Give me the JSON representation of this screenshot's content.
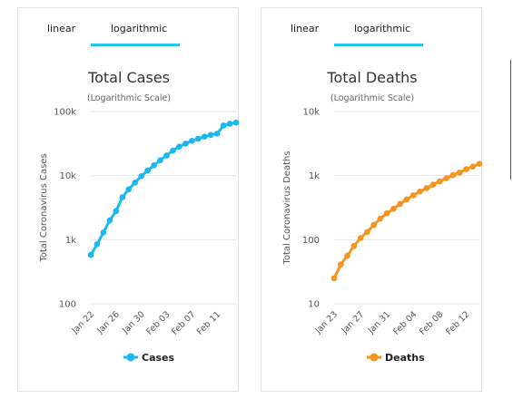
{
  "tabs": {
    "linear": "linear",
    "logarithmic": "logarithmic"
  },
  "colors": {
    "cases": "#1ab8f0",
    "deaths": "#f7941d",
    "grid": "#e6e6e6",
    "tab_accent": "#26c6ea"
  },
  "chart_data": [
    {
      "type": "line",
      "title": "Total Cases",
      "subtitle": "(Logarithmic Scale)",
      "ylabel": "Total Coronavirus Cases",
      "yscale": "log",
      "ylim": [
        100,
        100000
      ],
      "yticks": [
        "100",
        "1k",
        "10k",
        "100k"
      ],
      "xticks": [
        "Jan 22",
        "Jan 26",
        "Jan 30",
        "Feb 03",
        "Feb 07",
        "Feb 11"
      ],
      "grid": true,
      "legend_position": "bottom",
      "series": [
        {
          "name": "Cases",
          "x": [
            "Jan 22",
            "Jan 23",
            "Jan 24",
            "Jan 25",
            "Jan 26",
            "Jan 27",
            "Jan 28",
            "Jan 29",
            "Jan 30",
            "Jan 31",
            "Feb 01",
            "Feb 02",
            "Feb 03",
            "Feb 04",
            "Feb 05",
            "Feb 06",
            "Feb 07",
            "Feb 08",
            "Feb 09",
            "Feb 10",
            "Feb 11",
            "Feb 12",
            "Feb 13",
            "Feb 14"
          ],
          "values": [
            580,
            850,
            1300,
            2000,
            2800,
            4600,
            6100,
            7800,
            9800,
            12000,
            14500,
            17400,
            20600,
            24600,
            28300,
            31500,
            34900,
            37600,
            40600,
            43100,
            45200,
            60400,
            64500,
            67200
          ]
        }
      ]
    },
    {
      "type": "line",
      "title": "Total Deaths",
      "subtitle": "(Logarithmic Scale)",
      "ylabel": "Total Coronavirus Deaths",
      "yscale": "log",
      "ylim": [
        10,
        10000
      ],
      "yticks": [
        "10",
        "100",
        "1k",
        "10k"
      ],
      "xticks": [
        "Jan 23",
        "Jan 27",
        "Jan 31",
        "Feb 04",
        "Feb 08",
        "Feb 12"
      ],
      "grid": true,
      "legend_position": "bottom",
      "series": [
        {
          "name": "Deaths",
          "x": [
            "Jan 23",
            "Jan 24",
            "Jan 25",
            "Jan 26",
            "Jan 27",
            "Jan 28",
            "Jan 29",
            "Jan 30",
            "Jan 31",
            "Feb 01",
            "Feb 02",
            "Feb 03",
            "Feb 04",
            "Feb 05",
            "Feb 06",
            "Feb 07",
            "Feb 08",
            "Feb 09",
            "Feb 10",
            "Feb 11",
            "Feb 12",
            "Feb 13",
            "Feb 14"
          ],
          "values": [
            25,
            41,
            56,
            80,
            106,
            132,
            170,
            213,
            259,
            304,
            362,
            426,
            492,
            565,
            638,
            724,
            813,
            910,
            1018,
            1115,
            1261,
            1383,
            1526
          ]
        }
      ]
    }
  ]
}
